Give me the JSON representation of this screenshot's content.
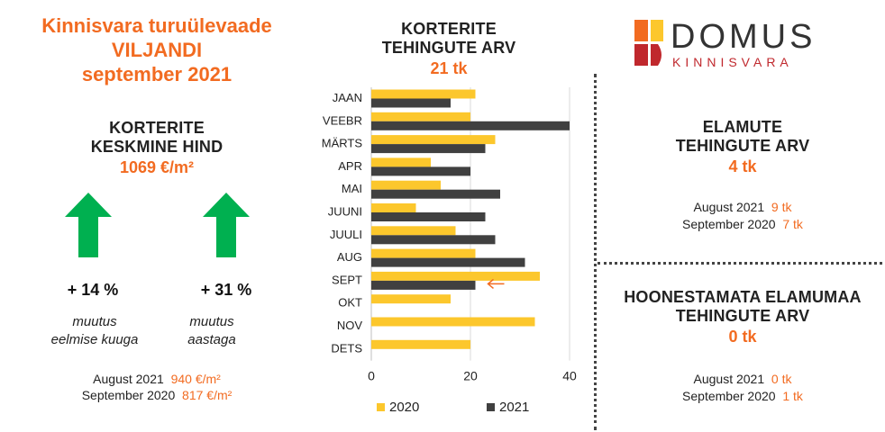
{
  "left": {
    "title_line1": "Kinnisvara turuülevaade",
    "title_line2": "VILJANDI",
    "title_line3": "september 2021",
    "price_header_line1": "KORTERITE",
    "price_header_line2": "KESKMINE HIND",
    "price_value": "1069 €/m²",
    "change_month": {
      "pct": "+ 14 %",
      "label_line1": "muutus",
      "label_line2": "eelmise kuuga"
    },
    "change_year": {
      "pct": "+ 31 %",
      "label_line1": "muutus",
      "label_line2": "aastaga"
    },
    "cmp1_label": "August 2021",
    "cmp1_value": "940 €/m²",
    "cmp2_label": "September 2020",
    "cmp2_value": "817 €/m²"
  },
  "middle": {
    "header_line1": "KORTERITE",
    "header_line2": "TEHINGUTE ARV",
    "value": "21 tk"
  },
  "right_top": {
    "header_line1": "ELAMUTE",
    "header_line2": "TEHINGUTE ARV",
    "value": "4 tk",
    "cmp1_label": "August 2021",
    "cmp1_value": "9 tk",
    "cmp2_label": "September 2020",
    "cmp2_value": "7 tk"
  },
  "right_bottom": {
    "header_line1": "HOONESTAMATA ELAMUMAA",
    "header_line2": "TEHINGUTE ARV",
    "value": "0 tk",
    "cmp1_label": "August 2021",
    "cmp1_value": "0 tk",
    "cmp2_label": "September 2020",
    "cmp2_value": "1 tk"
  },
  "logo": {
    "name": "DOMUS",
    "sub": "KINNISVARA"
  },
  "colors": {
    "accent": "#f26b21",
    "arrow_green": "#00b050",
    "series2020": "#fcc72c",
    "series2021": "#404040"
  },
  "chart_data": {
    "type": "bar",
    "orientation": "horizontal",
    "categories": [
      "JAAN",
      "VEEBR",
      "MÄRTS",
      "APR",
      "MAI",
      "JUUNI",
      "JUULI",
      "AUG",
      "SEPT",
      "OKT",
      "NOV",
      "DETS"
    ],
    "series": [
      {
        "name": "2020",
        "values": [
          21,
          20,
          25,
          12,
          14,
          9,
          17,
          21,
          34,
          16,
          33,
          20
        ]
      },
      {
        "name": "2021",
        "values": [
          16,
          40,
          23,
          20,
          26,
          23,
          25,
          31,
          21,
          null,
          null,
          null
        ]
      }
    ],
    "xticks": [
      "0",
      "20",
      "40"
    ],
    "xlim": [
      0,
      40
    ],
    "grid": "vertical",
    "legend": "bottom",
    "highlight_category": "SEPT"
  }
}
